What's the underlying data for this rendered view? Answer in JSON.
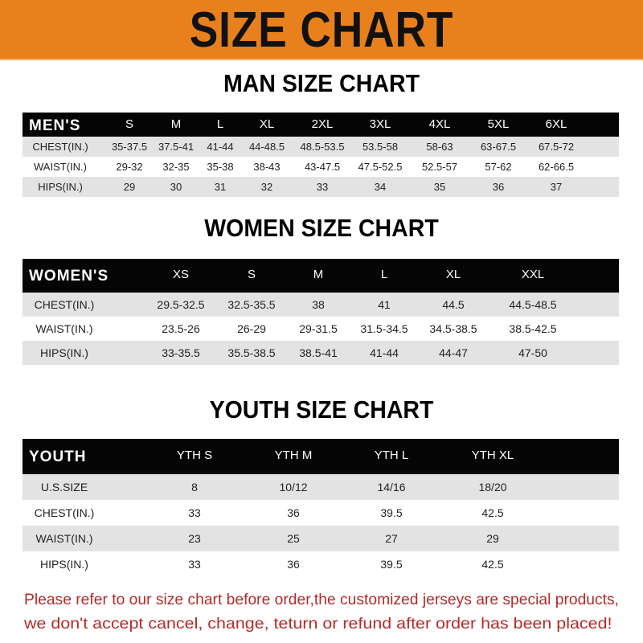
{
  "banner": {
    "title": "SIZE CHART",
    "color": "#e8801c"
  },
  "men": {
    "title": "MAN SIZE CHART",
    "header": [
      "MEN'S",
      "S",
      "M",
      "L",
      "XL",
      "2XL",
      "3XL",
      "4XL",
      "5XL",
      "6XL"
    ],
    "rows": [
      [
        "CHEST(IN.)",
        "35-37.5",
        "37.5-41",
        "41-44",
        "44-48.5",
        "48.5-53.5",
        "53.5-58",
        "58-63",
        "63-67.5",
        "67.5-72"
      ],
      [
        "WAIST(IN.)",
        "29-32",
        "32-35",
        "35-38",
        "38-43",
        "43-47.5",
        "47.5-52.5",
        "52.5-57",
        "57-62",
        "62-66.5"
      ],
      [
        "HIPS(IN.)",
        "29",
        "30",
        "31",
        "32",
        "33",
        "34",
        "35",
        "36",
        "37"
      ]
    ]
  },
  "women": {
    "title": "WOMEN SIZE CHART",
    "header": [
      "WOMEN'S",
      "XS",
      "S",
      "M",
      "L",
      "XL",
      "XXL"
    ],
    "rows": [
      [
        "CHEST(IN.)",
        "29.5-32.5",
        "32.5-35.5",
        "38",
        "41",
        "44.5",
        "44.5-48.5"
      ],
      [
        "WAIST(IN.)",
        "23.5-26",
        "26-29",
        "29-31.5",
        "31.5-34.5",
        "34.5-38.5",
        "38.5-42.5"
      ],
      [
        "HIPS(IN.)",
        "33-35.5",
        "35.5-38.5",
        "38.5-41",
        "41-44",
        "44-47",
        "47-50"
      ]
    ]
  },
  "youth": {
    "title": "YOUTH SIZE CHART",
    "header": [
      "YOUTH",
      "YTH S",
      "YTH M",
      "YTH L",
      "YTH XL"
    ],
    "rows": [
      [
        "U.S.SIZE",
        "8",
        "10/12",
        "14/16",
        "18/20"
      ],
      [
        "CHEST(IN.)",
        "33",
        "36",
        "39.5",
        "42.5"
      ],
      [
        "WAIST(IN.)",
        "23",
        "25",
        "27",
        "29"
      ],
      [
        "HIPS(IN.)",
        "33",
        "36",
        "39.5",
        "42.5"
      ]
    ]
  },
  "footer": {
    "line1": "Please refer to our size chart before order,the customized jerseys are special products,",
    "line2": "we don't accept cancel, change, teturn or refund after order has been placed!",
    "color": "#b52a2a"
  }
}
